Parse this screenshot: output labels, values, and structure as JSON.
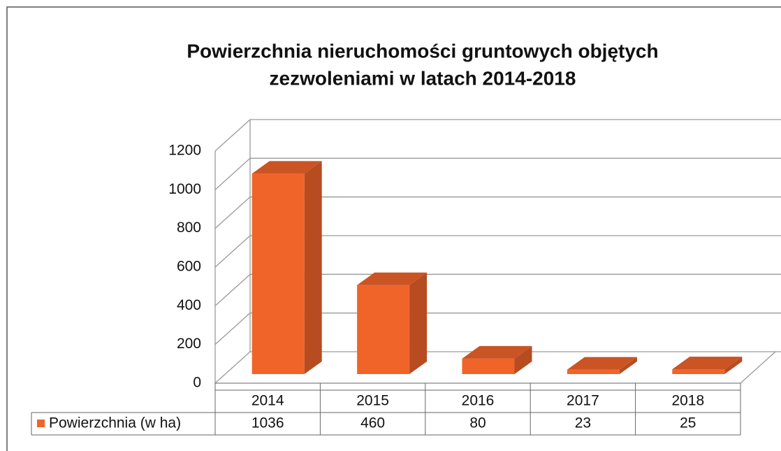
{
  "chart_data": {
    "type": "bar3d",
    "title": "Powierzchnia nieruchomości gruntowych objętych",
    "subtitle": "zezwoleniami w latach 2014-2018",
    "categories": [
      "2014",
      "2015",
      "2016",
      "2017",
      "2018"
    ],
    "series": [
      {
        "name": "Powierzchnia (w ha)",
        "color": "#f0642a",
        "values": [
          1036,
          460,
          80,
          23,
          25
        ]
      }
    ],
    "ylim": [
      0,
      1200
    ],
    "yticks": [
      0,
      200,
      400,
      600,
      800,
      1000,
      1200
    ],
    "grid": true
  }
}
